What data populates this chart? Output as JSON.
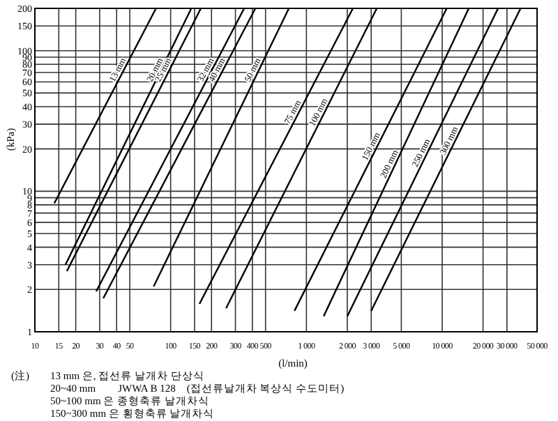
{
  "chart_data": {
    "type": "line",
    "xlabel": "(l/min)",
    "ylabel": "(kPa)",
    "log": "xy",
    "grid": true,
    "line_style": "solid",
    "xlim": [
      10,
      50000
    ],
    "ylim": [
      1,
      200
    ],
    "xticks": [
      10,
      15,
      20,
      30,
      40,
      50,
      100,
      150,
      200,
      300,
      400,
      500,
      {
        "value": 1000,
        "label": "1 000"
      },
      {
        "value": 2000,
        "label": "2 000"
      },
      {
        "value": 3000,
        "label": "3 000"
      },
      {
        "value": 5000,
        "label": "5 000"
      },
      {
        "value": 10000,
        "label": "10 000"
      },
      {
        "value": 20000,
        "label": "20 000"
      },
      {
        "value": 30000,
        "label": "30 000"
      },
      {
        "value": 50000,
        "label": "50 000"
      }
    ],
    "yticks": [
      1,
      2,
      3,
      4,
      5,
      6,
      7,
      8,
      9,
      10,
      20,
      30,
      40,
      50,
      60,
      70,
      80,
      90,
      100,
      150,
      200
    ],
    "series": [
      {
        "name": "13 mm",
        "color": "#000000",
        "x": [
          13.9,
          78
        ],
        "values": [
          8.2,
          200
        ]
      },
      {
        "name": "20 mm",
        "color": "#000000",
        "x": [
          16.8,
          142
        ],
        "values": [
          3.0,
          200
        ]
      },
      {
        "name": "25 mm",
        "color": "#000000",
        "x": [
          17.2,
          167
        ],
        "values": [
          2.7,
          200
        ]
      },
      {
        "name": "32 mm",
        "color": "#000000",
        "x": [
          28.3,
          348
        ],
        "values": [
          1.94,
          200
        ]
      },
      {
        "name": "40 mm",
        "color": "#000000",
        "x": [
          31.9,
          421
        ],
        "values": [
          1.73,
          200
        ]
      },
      {
        "name": "50 mm",
        "color": "#000000",
        "x": [
          75,
          743
        ],
        "values": [
          2.1,
          200
        ]
      },
      {
        "name": "75 mm",
        "color": "#000000",
        "x": [
          163,
          2200
        ],
        "values": [
          1.58,
          200
        ]
      },
      {
        "name": "100 mm",
        "color": "#000000",
        "x": [
          256,
          3300
        ],
        "values": [
          1.47,
          200
        ]
      },
      {
        "name": "150 mm",
        "color": "#000000",
        "x": [
          817,
          10800
        ],
        "values": [
          1.41,
          200
        ]
      },
      {
        "name": "200 mm",
        "color": "#000000",
        "x": [
          1340,
          15700
        ],
        "values": [
          1.29,
          200
        ]
      },
      {
        "name": "250 mm",
        "color": "#000000",
        "x": [
          2000,
          25800
        ],
        "values": [
          1.29,
          200
        ]
      },
      {
        "name": "300 mm",
        "color": "#000000",
        "x": [
          3000,
          37800
        ],
        "values": [
          1.41,
          200
        ]
      }
    ],
    "annotations": [
      "(注)",
      "13 mm 은, 접선류 날개차 단상식",
      "20~40 mm　　JWWA B 128　(접선류날개차 복상식 수도미터)",
      "50~100 mm 은 종형축류 날개차식",
      "150~300 mm 은 횡형축류 날개차식"
    ]
  }
}
